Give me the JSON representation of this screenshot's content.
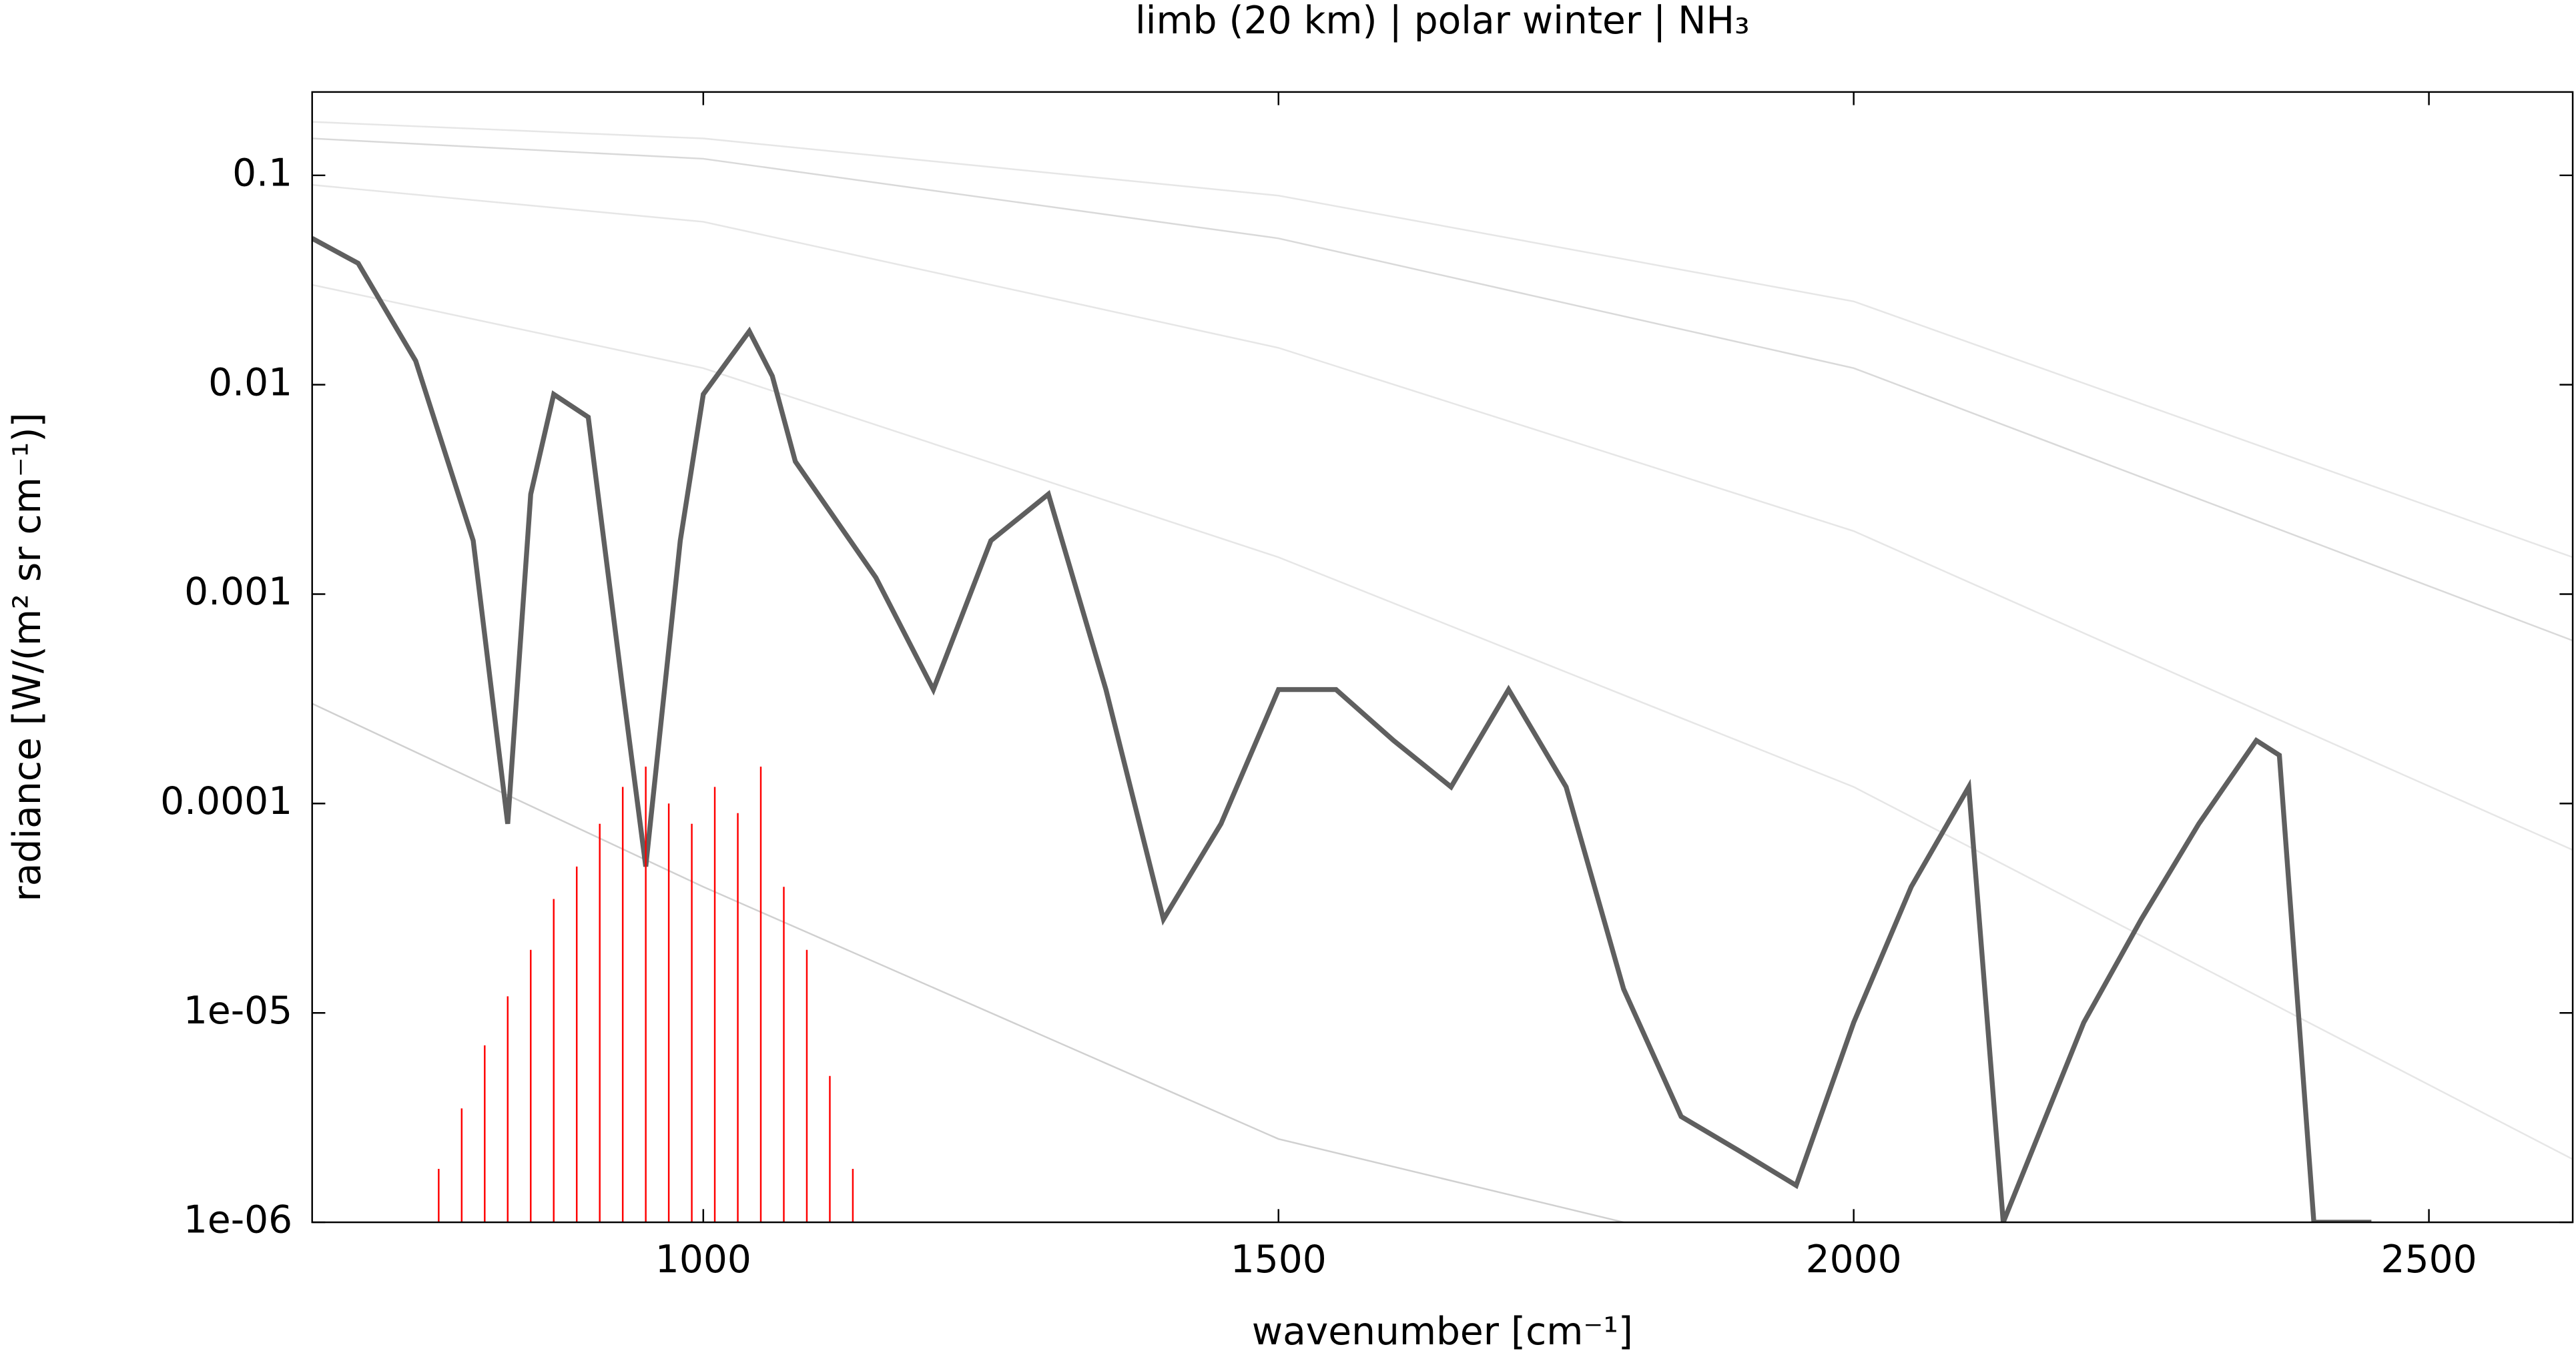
{
  "chart_data": {
    "type": "line",
    "title": "limb (20 km) | polar winter | NH₃",
    "x_label": "wavenumber [cm⁻¹]",
    "y_label": "radiance [W/(m² sr cm⁻¹)]",
    "y_log": true,
    "xlim": [
      660,
      2625
    ],
    "ylim": [
      1e-06,
      0.25
    ],
    "xticks": [
      1000,
      1500,
      2000,
      2500
    ],
    "yticks": [
      {
        "value": 1e-06,
        "label": "1e-06"
      },
      {
        "value": 1e-05,
        "label": "1e-05"
      },
      0.0001,
      0.001,
      0.01,
      0.1
    ],
    "series": [
      {
        "color": "#e6e6e6",
        "style": "line",
        "x": [
          660,
          1000,
          1500,
          2000,
          2625
        ],
        "values": [
          0.18,
          0.15,
          0.08,
          0.025,
          0.0015
        ]
      },
      {
        "color": "#d9d9d9",
        "style": "line",
        "x": [
          660,
          1000,
          1500,
          2000,
          2625
        ],
        "values": [
          0.15,
          0.12,
          0.05,
          0.012,
          0.0006
        ]
      },
      {
        "color": "#e6e6e6",
        "style": "line",
        "x": [
          660,
          1000,
          1500,
          2000,
          2625
        ],
        "values": [
          0.09,
          0.06,
          0.015,
          0.002,
          6e-05
        ]
      },
      {
        "color": "#e6e6e6",
        "style": "line",
        "x": [
          660,
          1000,
          1500,
          2000,
          2625
        ],
        "values": [
          0.03,
          0.012,
          0.0015,
          0.00012,
          2e-06
        ]
      },
      {
        "color": "#d0d0d0",
        "style": "line",
        "x": [
          660,
          1000,
          1500,
          1800
        ],
        "values": [
          0.0003,
          4e-05,
          2.5e-06,
          1e-06
        ]
      },
      {
        "color": "#5f5f5f",
        "style": "line",
        "x": [
          660,
          700,
          750,
          800,
          830,
          850,
          870,
          900,
          930,
          950,
          980,
          1000,
          1040,
          1060,
          1080,
          1150,
          1200,
          1250,
          1300,
          1350,
          1400,
          1450,
          1500,
          1550,
          1600,
          1650,
          1700,
          1750,
          1800,
          1850,
          1900,
          1950,
          2000,
          2050,
          2100,
          2130,
          2200,
          2250,
          2300,
          2350,
          2370,
          2400,
          2450
        ],
        "values": [
          0.05,
          0.038,
          0.013,
          0.0018,
          8e-05,
          0.003,
          0.009,
          0.007,
          0.00035,
          5e-05,
          0.0018,
          0.009,
          0.018,
          0.011,
          0.0043,
          0.0012,
          0.00035,
          0.0018,
          0.003,
          0.00035,
          2.8e-05,
          8e-05,
          0.00035,
          0.00035,
          0.0002,
          0.00012,
          0.00035,
          0.00012,
          1.3e-05,
          3.2e-06,
          2.2e-06,
          1.5e-06,
          9e-06,
          4e-05,
          0.00012,
          1e-06,
          9e-06,
          2.8e-05,
          8e-05,
          0.0002,
          0.00017,
          1e-06,
          1e-06
        ]
      },
      {
        "color": "#ff0000",
        "style": "stick",
        "x": [
          770,
          790,
          810,
          830,
          850,
          870,
          890,
          910,
          930,
          950,
          970,
          990,
          1010,
          1030,
          1050,
          1070,
          1090,
          1110,
          1130
        ],
        "values": [
          1.8e-06,
          3.5e-06,
          7e-06,
          1.2e-05,
          2e-05,
          3.5e-05,
          5e-05,
          8e-05,
          0.00012,
          0.00015,
          0.0001,
          8e-05,
          0.00012,
          9e-05,
          0.00015,
          4e-05,
          2e-05,
          5e-06,
          1.8e-06
        ]
      }
    ]
  }
}
